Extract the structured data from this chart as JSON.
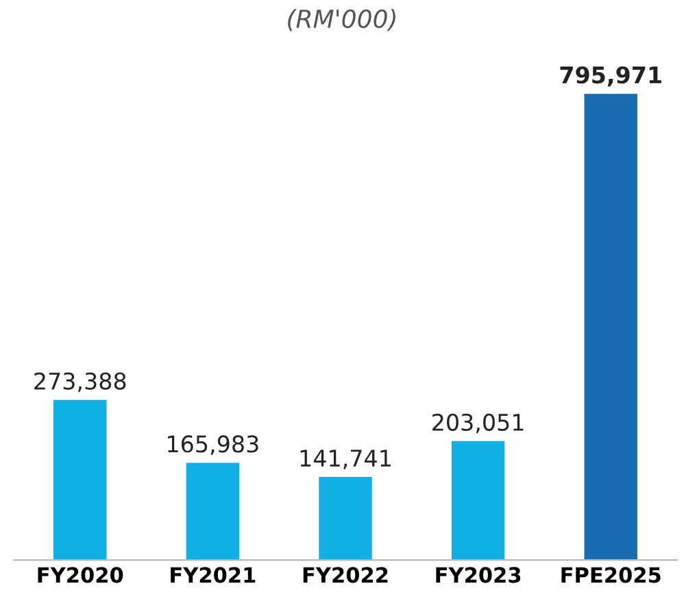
{
  "chart_data": {
    "type": "bar",
    "title": "(RM'000)",
    "categories": [
      "FY2020",
      "FY2021",
      "FY2022",
      "FY2023",
      "FPE2025"
    ],
    "values": [
      273388,
      165983,
      141741,
      203051,
      795971
    ],
    "colors": [
      "#10b0e6",
      "#10b0e6",
      "#10b0e6",
      "#10b0e6",
      "#1a6cb0"
    ],
    "value_labels": [
      "273,388",
      "165,983",
      "141,741",
      "203,051",
      "795,971"
    ],
    "grid": false,
    "legend": false
  }
}
